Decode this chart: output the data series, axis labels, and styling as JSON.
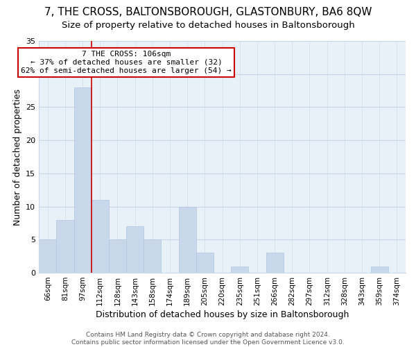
{
  "title": "7, THE CROSS, BALTONSBOROUGH, GLASTONBURY, BA6 8QW",
  "subtitle": "Size of property relative to detached houses in Baltonsborough",
  "xlabel": "Distribution of detached houses by size in Baltonsborough",
  "ylabel": "Number of detached properties",
  "bar_labels": [
    "66sqm",
    "81sqm",
    "97sqm",
    "112sqm",
    "128sqm",
    "143sqm",
    "158sqm",
    "174sqm",
    "189sqm",
    "205sqm",
    "220sqm",
    "235sqm",
    "251sqm",
    "266sqm",
    "282sqm",
    "297sqm",
    "312sqm",
    "328sqm",
    "343sqm",
    "359sqm",
    "374sqm"
  ],
  "bar_values": [
    5,
    8,
    28,
    11,
    5,
    7,
    5,
    0,
    10,
    3,
    0,
    1,
    0,
    3,
    0,
    0,
    0,
    0,
    0,
    1,
    0
  ],
  "bar_color": "#c8d8ea",
  "bar_edge_color": "#b0c8e0",
  "vline_color": "#cc0000",
  "vline_x": 2.45,
  "ylim": [
    0,
    35
  ],
  "yticks": [
    0,
    5,
    10,
    15,
    20,
    25,
    30,
    35
  ],
  "annotation_line1": "7 THE CROSS: 106sqm",
  "annotation_line2": "← 37% of detached houses are smaller (32)",
  "annotation_line3": "62% of semi-detached houses are larger (54) →",
  "annotation_box_color": "#ffffff",
  "annotation_box_edge": "#cc0000",
  "footer_line1": "Contains HM Land Registry data © Crown copyright and database right 2024.",
  "footer_line2": "Contains public sector information licensed under the Open Government Licence v3.0.",
  "background_color": "#ffffff",
  "plot_bg_color": "#e8f0f8",
  "grid_color": "#c8d8e8",
  "title_fontsize": 11,
  "subtitle_fontsize": 9.5,
  "axis_label_fontsize": 9,
  "tick_fontsize": 8
}
